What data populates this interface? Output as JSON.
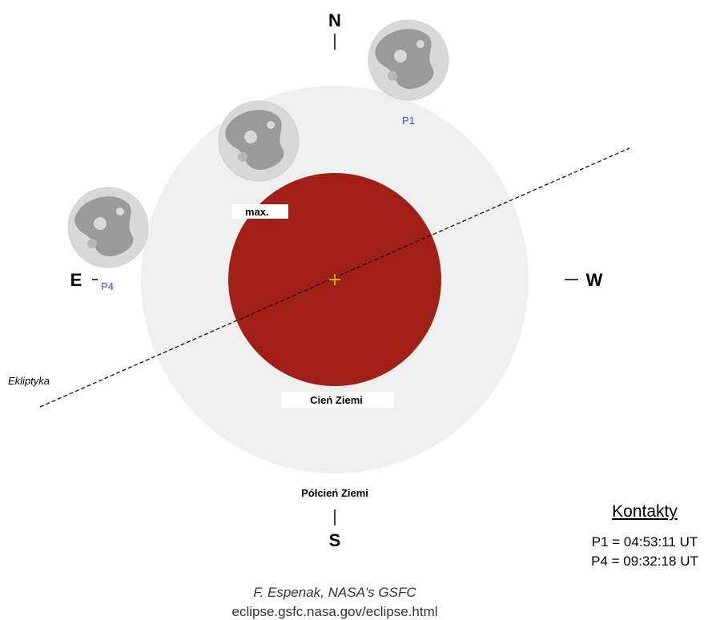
{
  "compass": {
    "north": "N",
    "south": "S",
    "east": "E",
    "west": "W"
  },
  "moons": {
    "p1": "P1",
    "p4": "P4",
    "max": "max."
  },
  "ecliptic_label": "Ekliptyka",
  "umbra_label": "Cień Ziemi",
  "penumbra_label": "Półcień Ziemi",
  "contacts": {
    "title": "Kontakty",
    "lines": [
      "P1 = 04:53:11 UT",
      "P4 = 09:32:18 UT"
    ]
  },
  "credit": {
    "author": "F. Espenak, NASA's GSFC",
    "url": "eclipse.gsfc.nasa.gov/eclipse.html"
  }
}
